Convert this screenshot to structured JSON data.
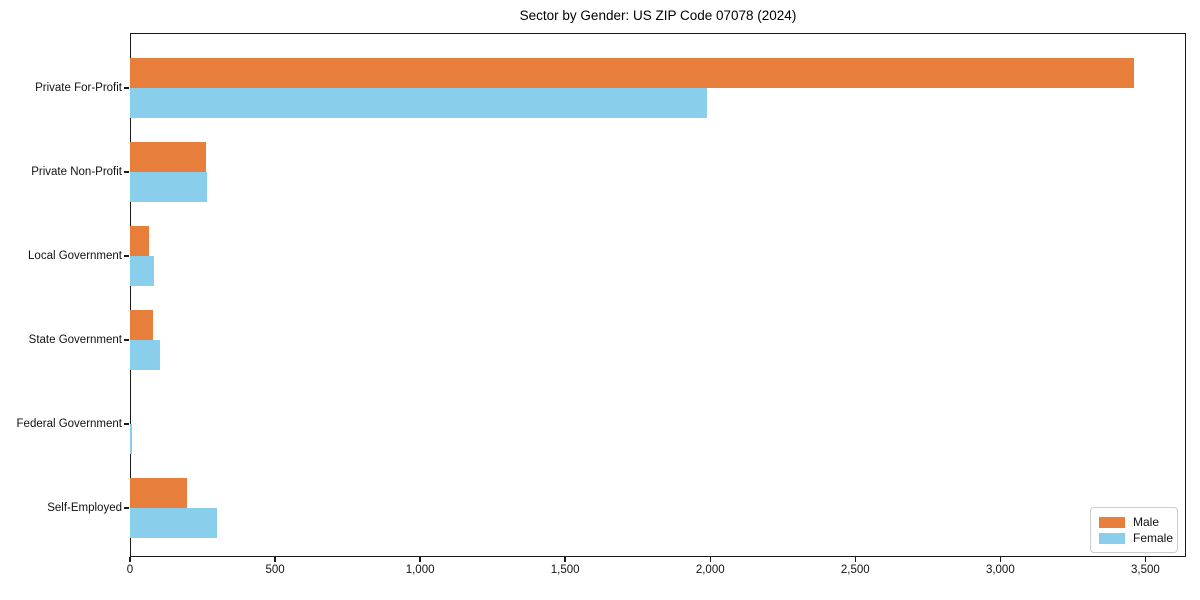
{
  "title": "Sector by Gender: US ZIP Code 07078 (2024)",
  "chart_data": {
    "type": "bar",
    "orientation": "horizontal",
    "title": "Sector by Gender: US ZIP Code 07078 (2024)",
    "categories": [
      "Private For-Profit",
      "Private Non-Profit",
      "Local Government",
      "State Government",
      "Federal Government",
      "Self-Employed"
    ],
    "series": [
      {
        "name": "Male",
        "color": "#E87E3B",
        "values": [
          3460,
          262,
          65,
          79,
          0,
          196
        ]
      },
      {
        "name": "Female",
        "color": "#89CEEA",
        "values": [
          1990,
          265,
          82,
          103,
          8,
          300
        ]
      }
    ],
    "xlabel": "",
    "ylabel": "",
    "xlim": [
      0,
      3640
    ],
    "x_ticks": [
      0,
      500,
      1000,
      1500,
      2000,
      2500,
      3000,
      3500
    ],
    "x_tick_labels": [
      "0",
      "500",
      "1,000",
      "1,500",
      "2,000",
      "2,500",
      "3,000",
      "3,500"
    ],
    "grid": false,
    "legend_position": "lower right",
    "plot_border_color": "#1a1a1a",
    "background_color": "#ffffff"
  }
}
